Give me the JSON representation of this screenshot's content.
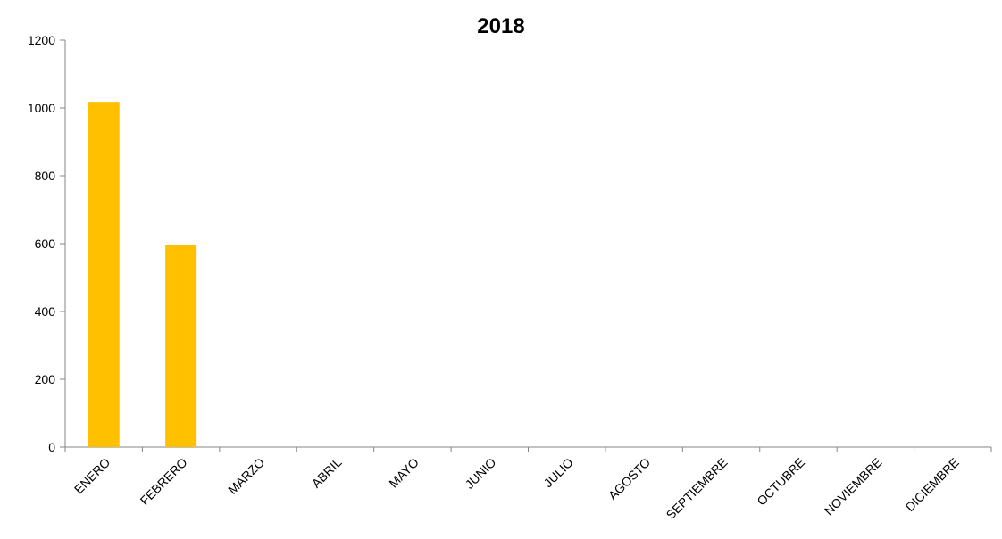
{
  "chart_data": {
    "type": "bar",
    "title": "2018",
    "xlabel": "",
    "ylabel": "",
    "categories": [
      "ENERO",
      "FEBRERO",
      "MARZO",
      "ABRIL",
      "MAYO",
      "JUNIO",
      "JULIO",
      "AGOSTO",
      "SEPTIEMBRE",
      "OCTUBRE",
      "NOVIEMBRE",
      "DICIEMBRE"
    ],
    "values": [
      1018,
      596,
      0,
      0,
      0,
      0,
      0,
      0,
      0,
      0,
      0,
      0
    ],
    "ylim": [
      0,
      1200
    ],
    "yticks": [
      "0",
      "200",
      "400",
      "600",
      "800",
      "1000",
      "1200"
    ],
    "grid": false,
    "legend": "none",
    "bar_color": "#FFC000",
    "axis_color": "#868686"
  }
}
